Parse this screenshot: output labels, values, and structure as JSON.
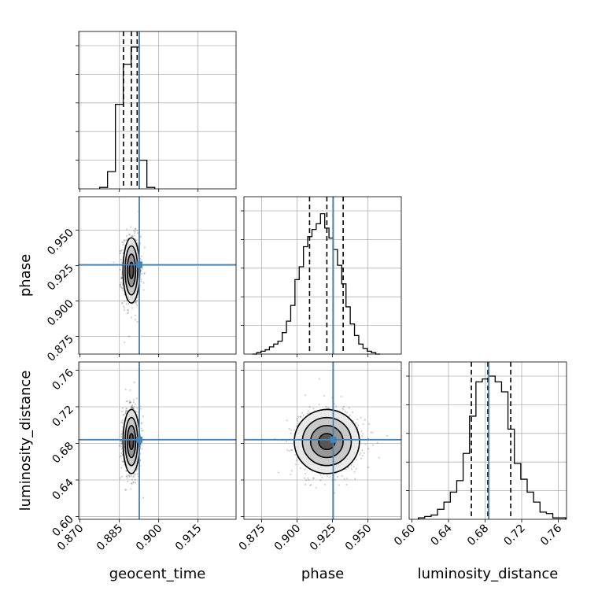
{
  "chart_data": {
    "type": "corner",
    "parameters": [
      "geocent_time",
      "phase",
      "luminosity_distance"
    ],
    "truths": {
      "geocent_time": 0.8926,
      "phase": 0.9255,
      "luminosity_distance": 0.684
    },
    "truth_color": "#4682b4",
    "quantiles": {
      "geocent_time": [
        0.8866,
        0.8896,
        0.8918
      ],
      "phase": [
        0.9088,
        0.921,
        0.9325
      ],
      "luminosity_distance": [
        0.665,
        0.683,
        0.708
      ]
    },
    "axes": {
      "geocent_time": {
        "range": [
          0.8695,
          0.9295
        ],
        "ticks": [
          0.87,
          0.885,
          0.9,
          0.915
        ],
        "tick_labels": [
          "0.870",
          "0.885",
          "0.900",
          "0.915"
        ]
      },
      "phase": {
        "range": [
          0.8625,
          0.9735
        ],
        "ticks": [
          0.875,
          0.9,
          0.925,
          0.95
        ],
        "tick_labels": [
          "0.875",
          "0.900",
          "0.925",
          "0.950"
        ]
      },
      "luminosity_distance": {
        "range": [
          0.597,
          0.769
        ],
        "ticks": [
          0.6,
          0.64,
          0.68,
          0.72,
          0.76
        ],
        "tick_labels": [
          "0.60",
          "0.64",
          "0.68",
          "0.72",
          "0.76"
        ]
      }
    },
    "hist_geocent_time": {
      "edges": [
        0.8775,
        0.8805,
        0.8835,
        0.8865,
        0.8895,
        0.8925,
        0.8955,
        0.8985
      ],
      "heights": [
        0.01,
        0.12,
        0.59,
        0.87,
        0.99,
        0.2,
        0.01
      ]
    },
    "hist_phase": {
      "edges": [
        0.8685,
        0.8715,
        0.8745,
        0.8775,
        0.8805,
        0.8835,
        0.8865,
        0.8895,
        0.8925,
        0.8955,
        0.8985,
        0.9015,
        0.9045,
        0.9075,
        0.9105,
        0.9135,
        0.9165,
        0.9195,
        0.9225,
        0.9255,
        0.9285,
        0.9315,
        0.9345,
        0.9375,
        0.9405,
        0.9435,
        0.9465,
        0.9495,
        0.9525,
        0.9555,
        0.9585
      ],
      "heights": [
        0.0,
        0.01,
        0.02,
        0.03,
        0.05,
        0.07,
        0.09,
        0.15,
        0.23,
        0.34,
        0.52,
        0.61,
        0.75,
        0.82,
        0.87,
        0.91,
        0.98,
        0.88,
        0.81,
        0.73,
        0.62,
        0.49,
        0.33,
        0.21,
        0.13,
        0.07,
        0.04,
        0.02,
        0.01,
        0.0
      ]
    },
    "hist_luminosity_distance": {
      "edges": [
        0.607,
        0.614,
        0.621,
        0.628,
        0.635,
        0.642,
        0.649,
        0.656,
        0.663,
        0.67,
        0.677,
        0.684,
        0.691,
        0.698,
        0.705,
        0.712,
        0.719,
        0.726,
        0.733,
        0.74,
        0.747,
        0.754,
        0.761,
        0.768
      ],
      "heights": [
        0.01,
        0.02,
        0.03,
        0.07,
        0.12,
        0.19,
        0.27,
        0.46,
        0.72,
        0.96,
        0.98,
        1.0,
        0.96,
        0.89,
        0.63,
        0.39,
        0.28,
        0.19,
        0.12,
        0.05,
        0.04,
        0.01,
        0.01
      ]
    },
    "contours_2d": [
      {
        "x_param": "geocent_time",
        "y_param": "phase",
        "center": [
          0.8896,
          0.9215
        ],
        "sigma": [
          0.0016,
          0.0115
        ]
      },
      {
        "x_param": "geocent_time",
        "y_param": "luminosity_distance",
        "center": [
          0.8896,
          0.682
        ],
        "sigma": [
          0.0016,
          0.0175
        ]
      },
      {
        "x_param": "phase",
        "y_param": "luminosity_distance",
        "center": [
          0.921,
          0.682
        ],
        "sigma": [
          0.0115,
          0.0175
        ]
      }
    ],
    "contour_levels_sigma": [
      0.5,
      1.0,
      1.5,
      2.0
    ],
    "grid": true
  }
}
